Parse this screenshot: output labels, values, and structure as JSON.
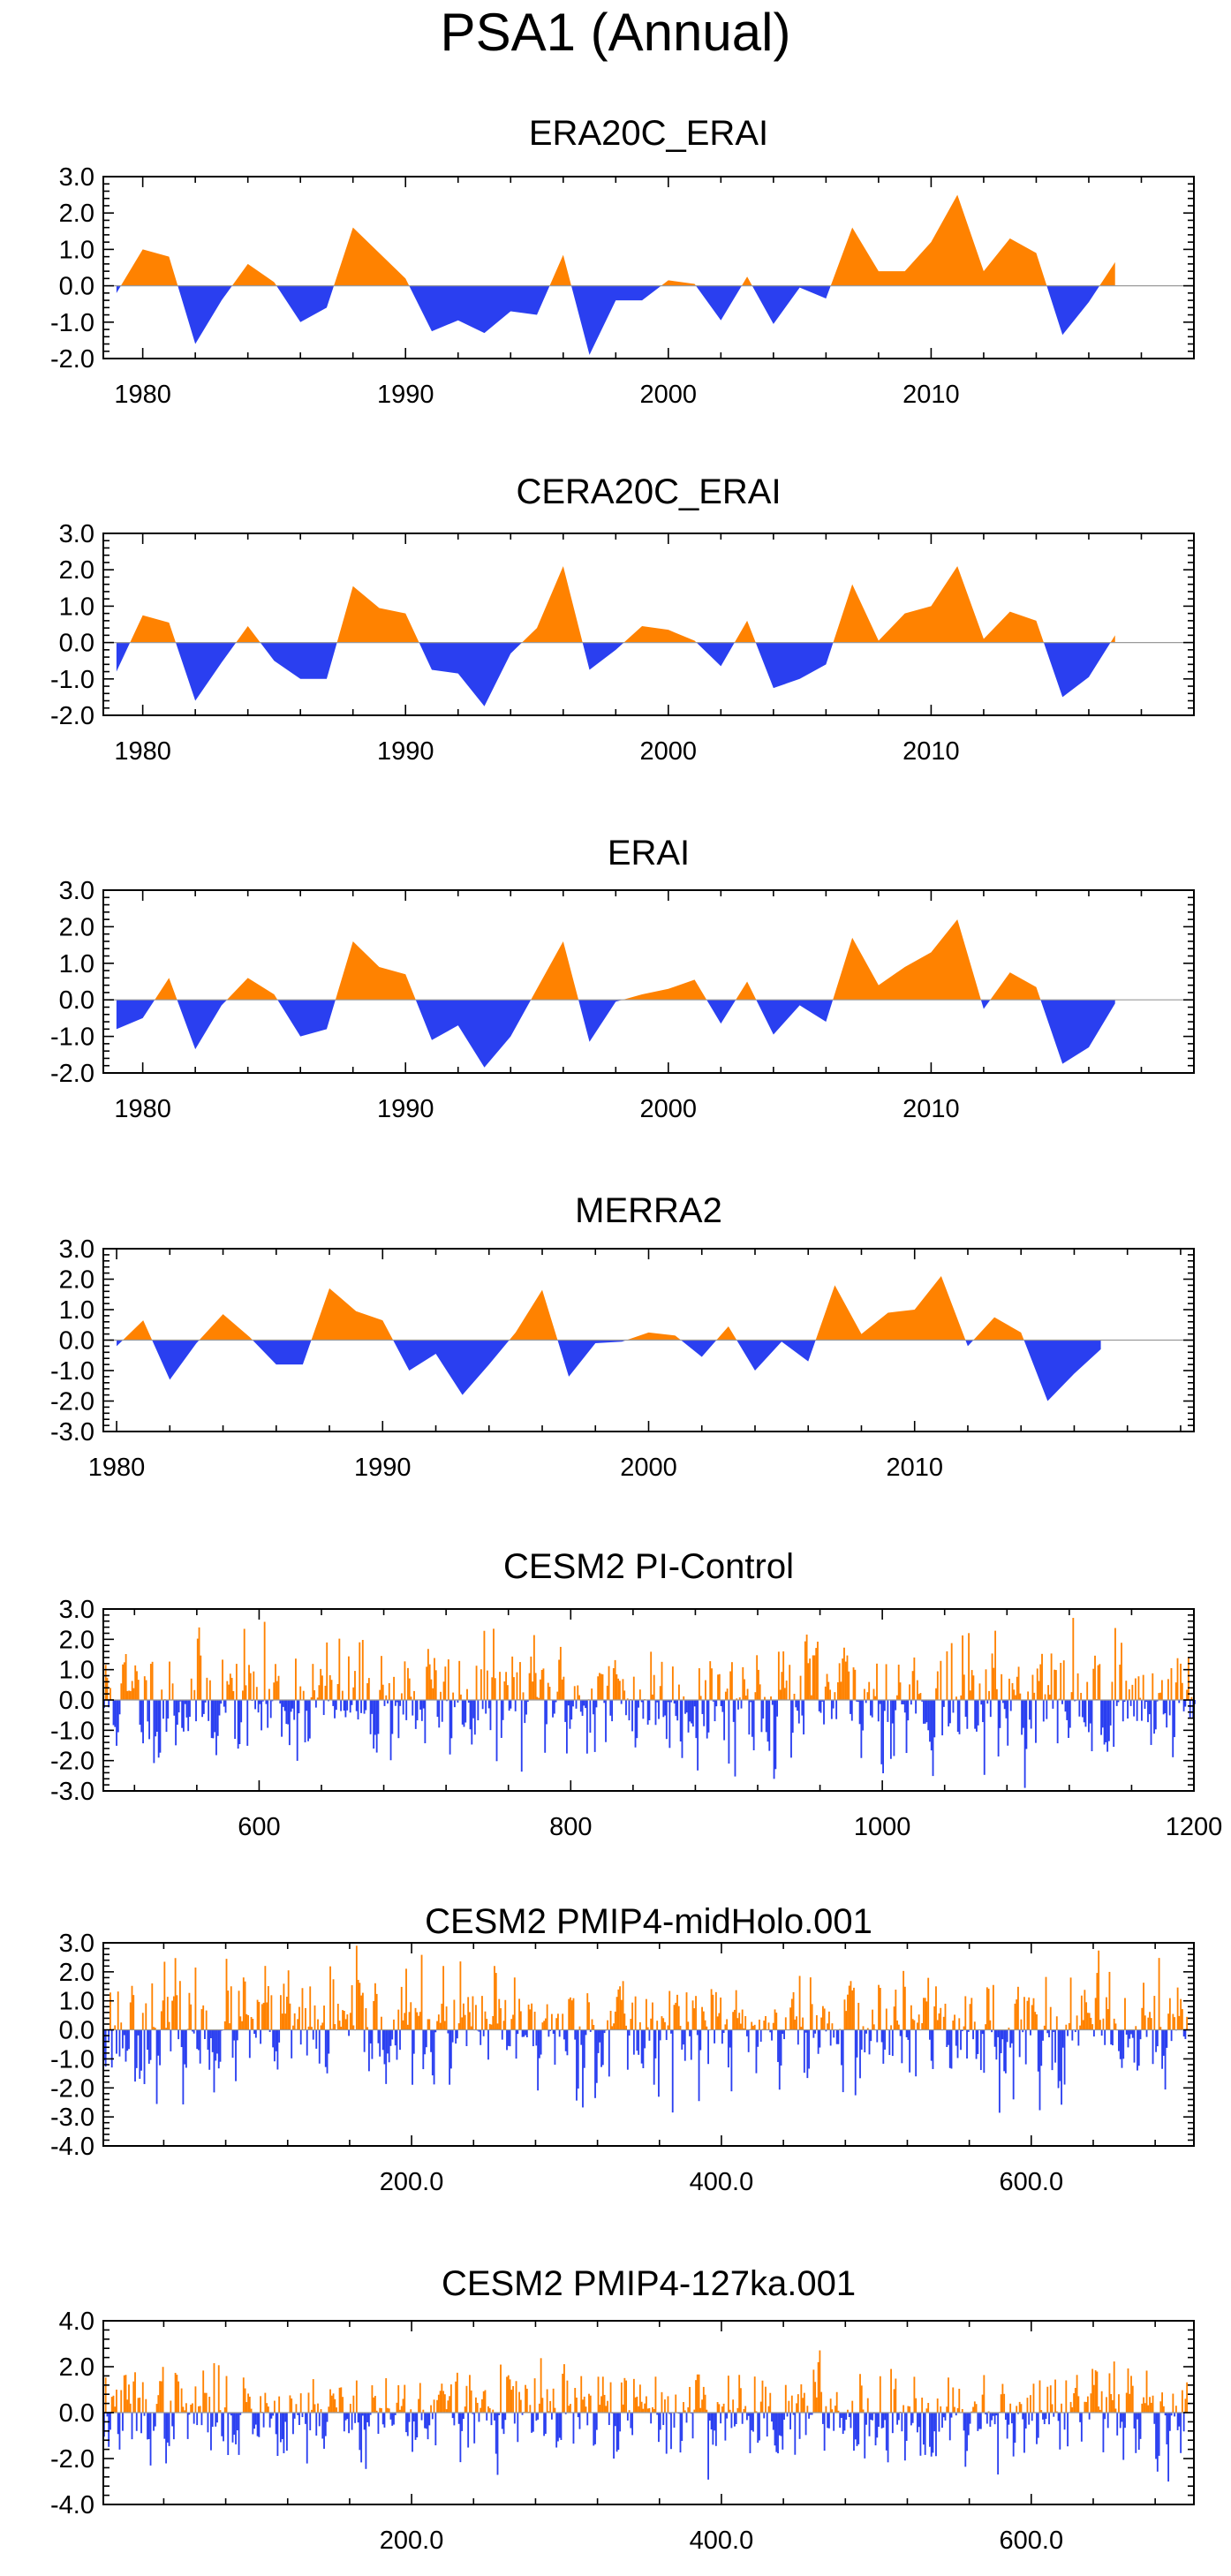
{
  "page": {
    "title": "PSA1 (Annual)",
    "colors": {
      "positive": "#ff8200",
      "negative": "#2a3ff0",
      "axis": "#000000"
    }
  },
  "chart_data": [
    {
      "type": "area",
      "title": "ERA20C_ERAI",
      "x": [
        1979,
        1980,
        1981,
        1982,
        1983,
        1984,
        1985,
        1986,
        1987,
        1988,
        1989,
        1990,
        1991,
        1992,
        1993,
        1994,
        1995,
        1996,
        1997,
        1998,
        1999,
        2000,
        2001,
        2002,
        2003,
        2004,
        2005,
        2006,
        2007,
        2008,
        2009,
        2010,
        2011,
        2012,
        2013,
        2014,
        2015,
        2016,
        2017
      ],
      "values": [
        -0.2,
        1.0,
        0.8,
        -1.6,
        -0.4,
        0.6,
        0.1,
        -1.0,
        -0.6,
        1.6,
        0.9,
        0.2,
        -1.25,
        -0.95,
        -1.3,
        -0.7,
        -0.8,
        0.85,
        -1.9,
        -0.4,
        -0.4,
        0.15,
        0.05,
        -0.95,
        0.25,
        -1.05,
        -0.05,
        -0.35,
        1.6,
        0.4,
        0.4,
        1.2,
        2.5,
        0.4,
        1.3,
        0.9,
        -1.35,
        -0.45,
        0.65
      ],
      "xlim": [
        1978.5,
        2020
      ],
      "ylim": [
        -2.0,
        3.0
      ],
      "yticks": [
        "-2.0",
        "-1.0",
        "0.0",
        "1.0",
        "2.0",
        "3.0"
      ],
      "ytick_values": [
        -2,
        -1,
        0,
        1,
        2,
        3
      ],
      "xticks": [
        "1980",
        "1990",
        "2000",
        "2010"
      ],
      "xtick_values": [
        1980,
        1990,
        2000,
        2010
      ]
    },
    {
      "type": "area",
      "title": "CERA20C_ERAI",
      "x": [
        1979,
        1980,
        1981,
        1982,
        1983,
        1984,
        1985,
        1986,
        1987,
        1988,
        1989,
        1990,
        1991,
        1992,
        1993,
        1994,
        1995,
        1996,
        1997,
        1998,
        1999,
        2000,
        2001,
        2002,
        2003,
        2004,
        2005,
        2006,
        2007,
        2008,
        2009,
        2010,
        2011,
        2012,
        2013,
        2014,
        2015,
        2016,
        2017
      ],
      "values": [
        -0.8,
        0.75,
        0.55,
        -1.6,
        -0.55,
        0.45,
        -0.5,
        -1.0,
        -1.0,
        1.55,
        0.95,
        0.8,
        -0.75,
        -0.85,
        -1.75,
        -0.3,
        0.4,
        2.1,
        -0.75,
        -0.2,
        0.45,
        0.35,
        0.05,
        -0.65,
        0.6,
        -1.25,
        -1.0,
        -0.6,
        1.6,
        0.05,
        0.8,
        1.0,
        2.1,
        0.1,
        0.85,
        0.6,
        -1.5,
        -0.95,
        0.2
      ],
      "xlim": [
        1978.5,
        2020
      ],
      "ylim": [
        -2.0,
        3.0
      ],
      "yticks": [
        "-2.0",
        "-1.0",
        "0.0",
        "1.0",
        "2.0",
        "3.0"
      ],
      "ytick_values": [
        -2,
        -1,
        0,
        1,
        2,
        3
      ],
      "xticks": [
        "1980",
        "1990",
        "2000",
        "2010"
      ],
      "xtick_values": [
        1980,
        1990,
        2000,
        2010
      ]
    },
    {
      "type": "area",
      "title": "ERAI",
      "x": [
        1979,
        1980,
        1981,
        1982,
        1983,
        1984,
        1985,
        1986,
        1987,
        1988,
        1989,
        1990,
        1991,
        1992,
        1993,
        1994,
        1995,
        1996,
        1997,
        1998,
        1999,
        2000,
        2001,
        2002,
        2003,
        2004,
        2005,
        2006,
        2007,
        2008,
        2009,
        2010,
        2011,
        2012,
        2013,
        2014,
        2015,
        2016,
        2017
      ],
      "values": [
        -0.8,
        -0.5,
        0.6,
        -1.35,
        -0.15,
        0.6,
        0.15,
        -1.0,
        -0.8,
        1.6,
        0.9,
        0.7,
        -1.1,
        -0.7,
        -1.85,
        -1.0,
        0.3,
        1.6,
        -1.15,
        -0.05,
        0.15,
        0.3,
        0.55,
        -0.65,
        0.5,
        -0.95,
        -0.15,
        -0.6,
        1.7,
        0.4,
        0.9,
        1.3,
        2.2,
        -0.25,
        0.75,
        0.35,
        -1.75,
        -1.3,
        -0.1
      ],
      "xlim": [
        1978.5,
        2020
      ],
      "ylim": [
        -2.0,
        3.0
      ],
      "yticks": [
        "-2.0",
        "-1.0",
        "0.0",
        "1.0",
        "2.0",
        "3.0"
      ],
      "ytick_values": [
        -2,
        -1,
        0,
        1,
        2,
        3
      ],
      "xticks": [
        "1980",
        "1990",
        "2000",
        "2010"
      ],
      "xtick_values": [
        1980,
        1990,
        2000,
        2010
      ]
    },
    {
      "type": "area",
      "title": "MERRA2",
      "x": [
        1980,
        1981,
        1982,
        1983,
        1984,
        1985,
        1986,
        1987,
        1988,
        1989,
        1990,
        1991,
        1992,
        1993,
        1994,
        1995,
        1996,
        1997,
        1998,
        1999,
        2000,
        2001,
        2002,
        2003,
        2004,
        2005,
        2006,
        2007,
        2008,
        2009,
        2010,
        2011,
        2012,
        2013,
        2014,
        2015,
        2016,
        2017
      ],
      "values": [
        -0.2,
        0.65,
        -1.3,
        -0.1,
        0.85,
        0.1,
        -0.8,
        -0.8,
        1.7,
        0.95,
        0.65,
        -1.0,
        -0.45,
        -1.8,
        -0.8,
        0.25,
        1.65,
        -1.2,
        -0.1,
        -0.05,
        0.25,
        0.15,
        -0.55,
        0.45,
        -1.0,
        -0.05,
        -0.7,
        1.8,
        0.2,
        0.9,
        1.0,
        2.1,
        -0.2,
        0.75,
        0.25,
        -2.0,
        -1.1,
        -0.3
      ],
      "xlim": [
        1979.5,
        2020.5
      ],
      "ylim": [
        -3.0,
        3.0
      ],
      "yticks": [
        "-3.0",
        "-2.0",
        "-1.0",
        "0.0",
        "1.0",
        "2.0",
        "3.0"
      ],
      "ytick_values": [
        -3,
        -2,
        -1,
        0,
        1,
        2,
        3
      ],
      "xticks": [
        "1980",
        "1990",
        "2000",
        "2010"
      ],
      "xtick_values": [
        1980,
        1990,
        2000,
        2010
      ]
    },
    {
      "type": "bar",
      "title": "CESM2 PI-Control",
      "x_start": 500,
      "x_end": 1200,
      "seed": 11,
      "amplitude": 1.0,
      "clip": [
        -2.9,
        2.9
      ],
      "xlim": [
        500,
        1200
      ],
      "ylim": [
        -3.0,
        3.0
      ],
      "yticks": [
        "-3.0",
        "-2.0",
        "-1.0",
        "0.0",
        "1.0",
        "2.0",
        "3.0"
      ],
      "ytick_values": [
        -3,
        -2,
        -1,
        0,
        1,
        2,
        3
      ],
      "xticks": [
        "600",
        "800",
        "1000",
        "1200"
      ],
      "xtick_values": [
        600,
        800,
        1000,
        1200
      ]
    },
    {
      "type": "bar",
      "title": "CESM2 PMIP4-midHolo.001",
      "x_start": 1,
      "x_end": 700,
      "seed": 23,
      "amplitude": 1.0,
      "clip": [
        -3.0,
        2.9
      ],
      "xlim": [
        1,
        705
      ],
      "ylim": [
        -4.0,
        3.0
      ],
      "yticks": [
        "-4.0",
        "-3.0",
        "-2.0",
        "-1.0",
        "0.0",
        "1.0",
        "2.0",
        "3.0"
      ],
      "ytick_values": [
        -4,
        -3,
        -2,
        -1,
        0,
        1,
        2,
        3
      ],
      "xticks": [
        "200.0",
        "400.0",
        "600.0"
      ],
      "xtick_values": [
        200,
        400,
        600
      ]
    },
    {
      "type": "bar",
      "title": "CESM2 PMIP4-127ka.001",
      "x_start": 1,
      "x_end": 700,
      "seed": 37,
      "amplitude": 1.0,
      "clip": [
        -3.0,
        3.1
      ],
      "xlim": [
        1,
        705
      ],
      "ylim": [
        -4.0,
        4.0
      ],
      "yticks": [
        "-4.0",
        "-2.0",
        "0.0",
        "2.0",
        "4.0"
      ],
      "ytick_values": [
        -4,
        -2,
        0,
        2,
        4
      ],
      "xticks": [
        "200.0",
        "400.0",
        "600.0"
      ],
      "xtick_values": [
        200,
        400,
        600
      ]
    }
  ]
}
